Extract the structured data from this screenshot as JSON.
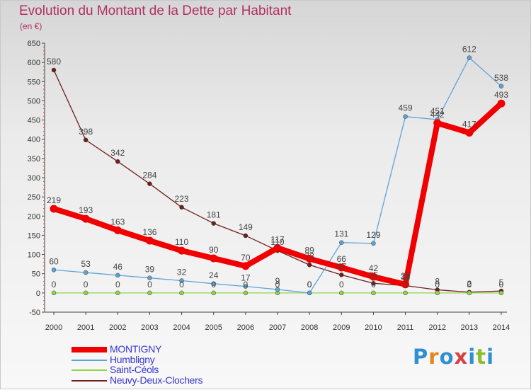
{
  "title": "Evolution du Montant de la Dette par Habitant",
  "unit": "(en €)",
  "brand": "Proxiti",
  "colors": {
    "title": "#b03060",
    "legend_text": "#3636d6",
    "brand_letters": [
      "#2f8fd3",
      "#e6861a",
      "#2f8fd3",
      "#d94040",
      "#2f8fd3",
      "#8bbd2c",
      "#2f8fd3"
    ]
  },
  "chart_data": {
    "type": "line",
    "x": [
      2000,
      2001,
      2002,
      2003,
      2004,
      2005,
      2006,
      2007,
      2008,
      2009,
      2010,
      2011,
      2012,
      2013,
      2014
    ],
    "ylim": [
      -50,
      650
    ],
    "yticks": [
      -50,
      0,
      50,
      100,
      150,
      200,
      250,
      300,
      350,
      400,
      450,
      500,
      550,
      600,
      650
    ],
    "grid": false,
    "legend_position": "bottom-left",
    "series": [
      {
        "name": "Neuvy-Deux-Clochers",
        "color": "#6e1f1f",
        "values": [
          580,
          398,
          342,
          284,
          223,
          181,
          149,
          110,
          73,
          47,
          25,
          19,
          8,
          2,
          5
        ]
      },
      {
        "name": "Saint-Céols",
        "color": "#8fd44a",
        "values": [
          0,
          0,
          0,
          0,
          0,
          0,
          0,
          0,
          0,
          0,
          0,
          0,
          0,
          0,
          0
        ]
      },
      {
        "name": "Humbligny",
        "color": "#5fa3d6",
        "values": [
          60,
          53,
          46,
          39,
          32,
          24,
          17,
          9,
          0,
          131,
          129,
          459,
          451,
          612,
          538
        ]
      },
      {
        "name": "MONTIGNY",
        "color": "#f00000",
        "values": [
          219,
          193,
          163,
          136,
          110,
          90,
          70,
          117,
          89,
          66,
          42,
          22,
          442,
          417,
          493
        ]
      }
    ]
  }
}
